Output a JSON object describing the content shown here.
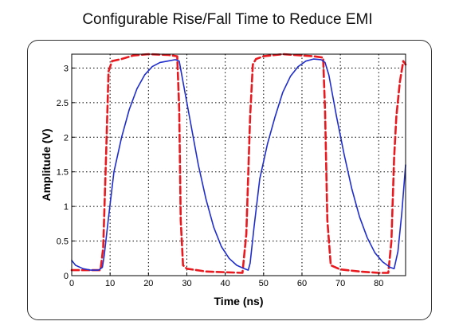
{
  "chart_data": {
    "type": "line",
    "title": "Configurable Rise/Fall Time to Reduce EMI",
    "xlabel": "Time (ns)",
    "ylabel": "Amplitude (V)",
    "xlim": [
      0,
      87
    ],
    "ylim": [
      0,
      3.2
    ],
    "x_ticks": [
      0,
      10,
      20,
      30,
      40,
      50,
      60,
      70,
      80
    ],
    "y_ticks": [
      0,
      0.5,
      1,
      1.5,
      2,
      2.5,
      3
    ],
    "x_tick_labels": [
      "0",
      "10",
      "20",
      "30",
      "40",
      "50",
      "60",
      "70",
      "80"
    ],
    "y_tick_labels": [
      "0",
      "0.5",
      "1",
      "1.5",
      "2",
      "2.5",
      "3"
    ],
    "grid": true,
    "series": [
      {
        "color": "#e8191f",
        "style": "dashed",
        "x": [
          0,
          7.5,
          8.2,
          9.0,
          9.6,
          10.5,
          13,
          16,
          20,
          25,
          27.5,
          28.0,
          28.4,
          29.0,
          30,
          35,
          40,
          44.5,
          45.5,
          46.5,
          47.2,
          48,
          50,
          55,
          60,
          63,
          65.5,
          66.0,
          66.6,
          67.5,
          70,
          75,
          80,
          82.5,
          83.3,
          84.0,
          84.6,
          85.5,
          86.4,
          87
        ],
        "y": [
          0.08,
          0.08,
          0.4,
          1.8,
          2.95,
          3.1,
          3.13,
          3.18,
          3.2,
          3.19,
          3.17,
          2.4,
          0.8,
          0.15,
          0.1,
          0.06,
          0.05,
          0.04,
          0.6,
          2.3,
          3.05,
          3.13,
          3.17,
          3.2,
          3.18,
          3.17,
          3.15,
          2.4,
          0.8,
          0.15,
          0.09,
          0.06,
          0.04,
          0.04,
          0.5,
          1.7,
          2.3,
          2.8,
          3.1,
          3.05
        ]
      },
      {
        "color": "#1f2dcc",
        "style": "solid",
        "x": [
          0,
          1,
          3,
          5,
          7,
          8,
          8.5,
          9.5,
          11,
          13,
          15,
          17,
          19,
          21,
          23,
          25,
          27,
          28,
          29,
          31,
          33,
          35,
          37,
          39,
          41,
          43,
          45,
          46,
          46.5,
          47.5,
          49,
          51,
          53,
          55,
          57,
          59,
          61,
          63,
          65,
          66,
          67,
          69,
          71,
          73,
          75,
          77,
          79,
          81,
          83,
          84,
          85,
          86,
          87
        ],
        "y": [
          0.22,
          0.15,
          0.1,
          0.08,
          0.08,
          0.12,
          0.3,
          0.8,
          1.5,
          2.0,
          2.4,
          2.7,
          2.9,
          3.02,
          3.08,
          3.1,
          3.12,
          3.1,
          2.8,
          2.2,
          1.6,
          1.1,
          0.7,
          0.42,
          0.25,
          0.15,
          0.1,
          0.08,
          0.18,
          0.7,
          1.4,
          1.9,
          2.3,
          2.65,
          2.88,
          3.02,
          3.1,
          3.13,
          3.12,
          3.08,
          2.9,
          2.3,
          1.75,
          1.25,
          0.85,
          0.55,
          0.33,
          0.2,
          0.12,
          0.1,
          0.35,
          0.9,
          1.6
        ]
      }
    ]
  }
}
